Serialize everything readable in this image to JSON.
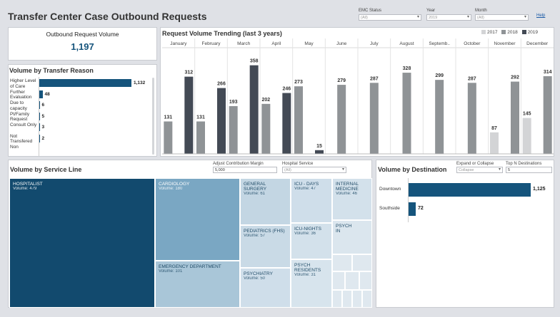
{
  "header": {
    "title": "Transfer Center Case Outbound Requests",
    "help": "Help",
    "filters": [
      {
        "label": "EMC Status",
        "value": "(All)"
      },
      {
        "label": "Year",
        "value": "2019"
      },
      {
        "label": "Month",
        "value": "(All)"
      }
    ]
  },
  "kpi": {
    "title": "Outbound Request Volume",
    "value": "1,197"
  },
  "reason": {
    "title": "Volume by Transfer Reason",
    "items": [
      {
        "label": "Higher Level\nof Care",
        "value": 1132,
        "display": "1,132"
      },
      {
        "label": "Further\nEvaluation",
        "value": 48,
        "display": "48"
      },
      {
        "label": "Due to\ncapacity",
        "value": 6,
        "display": "6"
      },
      {
        "label": "Pt/Family\nRequest",
        "value": 5,
        "display": "5"
      },
      {
        "label": "Consult Only",
        "value": 3,
        "display": "3"
      },
      {
        "label": "Not\nTransfered",
        "value": 2,
        "display": "2"
      },
      {
        "label": "Non",
        "value": 0,
        "display": ""
      }
    ]
  },
  "trend": {
    "title": "Request Volume Trending (last 3 years)",
    "legend": [
      {
        "name": "2017",
        "color": "#d3d4d6"
      },
      {
        "name": "2018",
        "color": "#8f9396"
      },
      {
        "name": "2019",
        "color": "#434a55"
      }
    ]
  },
  "chart_data": {
    "type": "bar",
    "categories": [
      "January",
      "February",
      "March",
      "April",
      "May",
      "June",
      "July",
      "August",
      "Septemb..",
      "October",
      "November",
      "December"
    ],
    "series": [
      {
        "name": "2017",
        "values": [
          null,
          null,
          null,
          null,
          null,
          null,
          null,
          null,
          null,
          null,
          87,
          145
        ]
      },
      {
        "name": "2018",
        "values": [
          131,
          131,
          193,
          202,
          273,
          279,
          287,
          328,
          299,
          287,
          292,
          314
        ]
      },
      {
        "name": "2019",
        "values": [
          312,
          266,
          358,
          246,
          15,
          null,
          null,
          null,
          null,
          null,
          null,
          null
        ]
      }
    ],
    "ylim": [
      0,
      380
    ]
  },
  "service": {
    "title": "Volume by Service Line",
    "contrib_label": "Adjust Contribution Margin",
    "contrib_value": "5,000",
    "hospital_label": "Hospital Service",
    "hospital_value": "(All)",
    "cells": [
      {
        "name": "HOSPITALIST",
        "volume": "Volume: 479"
      },
      {
        "name": "CARDIOLOGY",
        "volume": "Volume: 180"
      },
      {
        "name": "EMERGENCY DEPARTMENT",
        "volume": "Volume: 101"
      },
      {
        "name": "GENERAL SURGERY",
        "volume": "Volume: 61"
      },
      {
        "name": "PEDIATRICS (FHS)",
        "volume": "Volume: 57"
      },
      {
        "name": "PSYCHIATRY",
        "volume": "Volume: 50"
      },
      {
        "name": "ICU - DAYS",
        "volume": "Volume: 47"
      },
      {
        "name": "ICU-NIGHTS",
        "volume": "Volume: 36"
      },
      {
        "name": "PSYCH\nRESIDENTS",
        "volume": "Volume: 31"
      },
      {
        "name": "INTERNAL\nMEDICINE",
        "volume": "Volume: 46"
      },
      {
        "name": "PSYCH\nIN",
        "volume": ""
      }
    ]
  },
  "destination": {
    "title": "Volume by Destination",
    "expand_label": "Expand or Collapse",
    "expand_value": "Collapse",
    "topn_label": "Top N Destinations",
    "topn_value": "5",
    "items": [
      {
        "label": "Downtown",
        "value": 1125,
        "display": "1,125"
      },
      {
        "label": "Southside",
        "value": 72,
        "display": "72"
      }
    ]
  }
}
